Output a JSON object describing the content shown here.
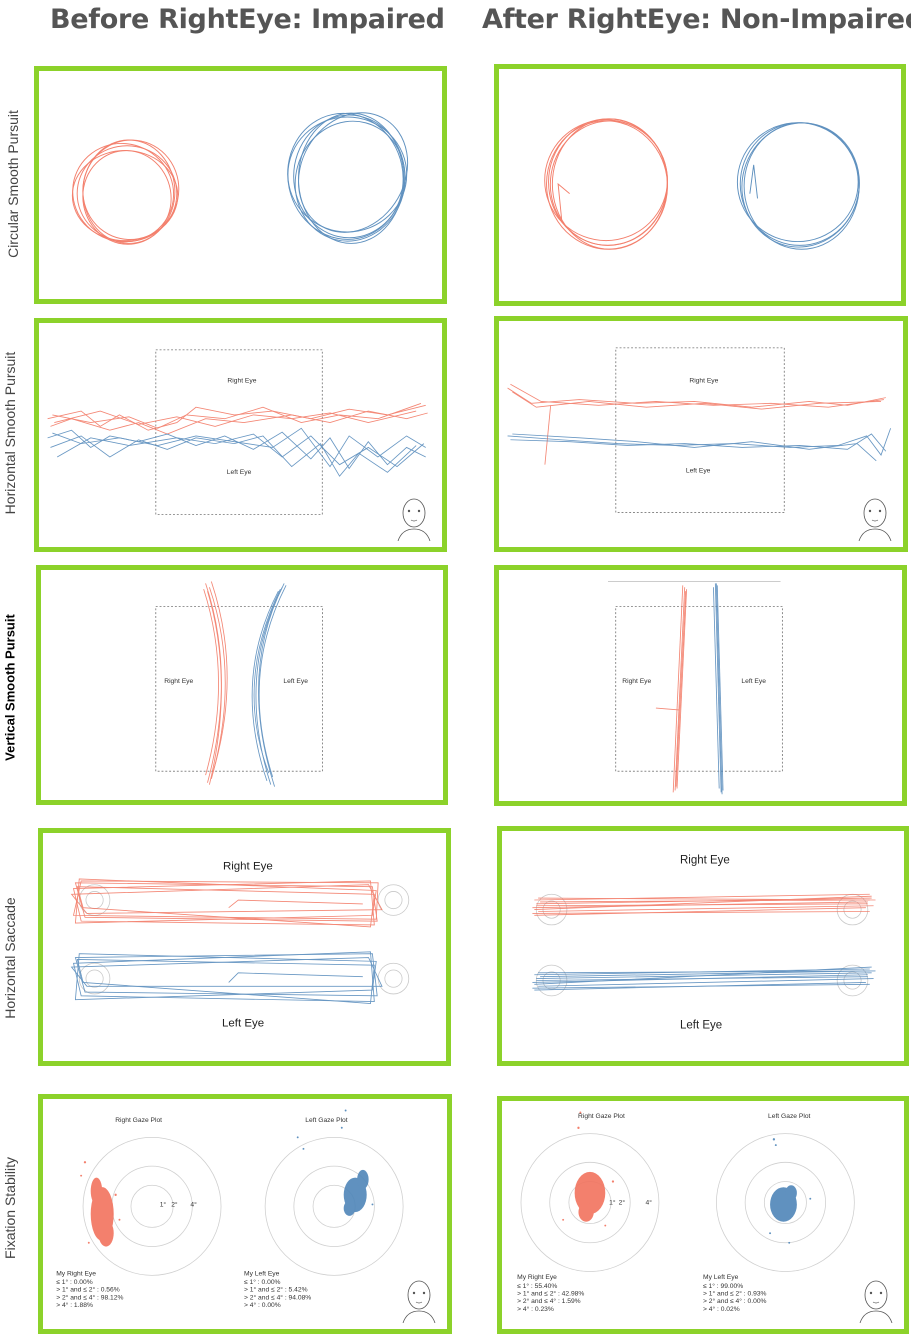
{
  "columns": {
    "before": "Before RightEye: Impaired",
    "after": "After RightEye: Non-Impaired"
  },
  "rows": {
    "circular": "Circular Smooth Pursuit",
    "horizontal_pursuit": "Horizontal Smooth Pursuit",
    "vertical_pursuit": "Vertical Smooth Pursuit",
    "saccade": "Horizontal Saccade",
    "fixation": "Fixation Stability"
  },
  "labels": {
    "right_eye": "Right Eye",
    "left_eye": "Left Eye",
    "right_gaze": "Right Gaze Plot",
    "left_gaze": "Left Gaze Plot",
    "ring1": "1°",
    "ring2": "2°",
    "ring4": "4°"
  },
  "stats": {
    "before_right": {
      "title": "My Right Eye",
      "lines": [
        "≤ 1° : 0.00%",
        "> 1° and ≤ 2° : 0.56%",
        "> 2° and ≤ 4° : 98.12%",
        "> 4° : 1.88%"
      ]
    },
    "before_left": {
      "title": "My Left Eye",
      "lines": [
        "≤ 1° : 0.00%",
        "> 1° and ≤ 2° : 5.42%",
        "> 2° and ≤ 4° : 94.08%",
        "> 4° : 0.00%"
      ]
    },
    "after_right": {
      "title": "My Right Eye",
      "lines": [
        "≤ 1° : 55.40%",
        "> 1° and ≤ 2° : 42.98%",
        "> 2° and ≤ 4° : 1.59%",
        "> 4° : 0.23%"
      ]
    },
    "after_left": {
      "title": "My Left Eye",
      "lines": [
        "≤ 1° : 99.00%",
        "> 1° and ≤ 2° : 0.93%",
        "> 2° and ≤ 4° : 0.00%",
        "> 4° : 0.02%"
      ]
    }
  },
  "colors": {
    "frame": "#8cd22a",
    "right_eye": "#f2735e",
    "left_eye": "#4f86b9",
    "title_gray": "#555555"
  }
}
